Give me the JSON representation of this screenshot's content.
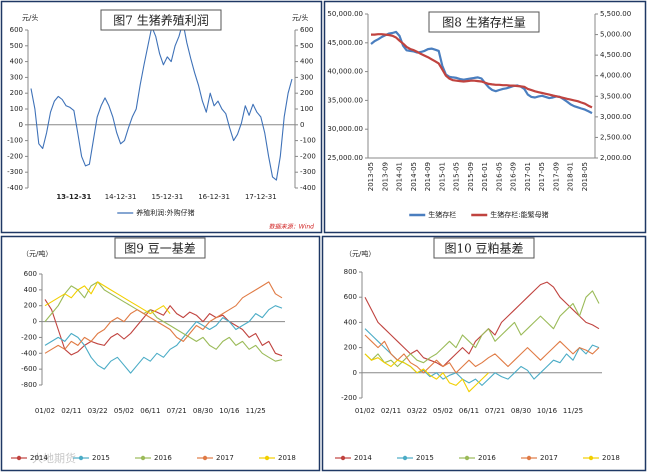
{
  "watermark": "大地期货",
  "chart_data": [
    {
      "type": "line",
      "title": "图7 生猪养殖利润",
      "y_label": "元/头",
      "y2_label": "元/头",
      "source": "数据来源：Wind",
      "legend": "bottom",
      "categories": [
        null,
        null,
        null,
        null,
        null,
        null,
        null,
        null,
        null,
        null,
        null,
        "13-12-31",
        null,
        null,
        null,
        null,
        null,
        null,
        null,
        null,
        null,
        null,
        null,
        "14-12-31",
        null,
        null,
        null,
        null,
        null,
        null,
        null,
        null,
        null,
        null,
        null,
        "15-12-31",
        null,
        null,
        null,
        null,
        null,
        null,
        null,
        null,
        null,
        null,
        null,
        "16-12-31",
        null,
        null,
        null,
        null,
        null,
        null,
        null,
        null,
        null,
        null,
        null,
        "17-12-31",
        null,
        null,
        null,
        null,
        null,
        null,
        null,
        null
      ],
      "ylim": [
        -400,
        600
      ],
      "yticks": [
        -400,
        -300,
        -200,
        -100,
        0,
        100,
        200,
        300,
        400,
        500,
        600
      ],
      "series": [
        {
          "name": "养殖利润:外购仔猪",
          "color": "#3f72b8",
          "values": [
            230,
            100,
            -120,
            -150,
            -50,
            80,
            150,
            180,
            160,
            120,
            110,
            90,
            -50,
            -200,
            -260,
            -250,
            -100,
            50,
            120,
            170,
            120,
            50,
            -50,
            -120,
            -100,
            -20,
            50,
            100,
            250,
            380,
            500,
            620,
            560,
            450,
            380,
            430,
            400,
            500,
            560,
            650,
            520,
            420,
            330,
            250,
            150,
            80,
            200,
            120,
            150,
            100,
            70,
            -20,
            -100,
            -60,
            10,
            120,
            60,
            130,
            80,
            50,
            -50,
            -200,
            -330,
            -350,
            -200,
            50,
            200,
            290
          ]
        }
      ]
    },
    {
      "type": "line",
      "title": "图8 生猪存栏量",
      "legend": "bottom",
      "categories": [
        "2013-05",
        null,
        null,
        null,
        "2013-09",
        null,
        null,
        null,
        "2014-01",
        null,
        null,
        null,
        "2014-05",
        null,
        null,
        null,
        "2014-09",
        null,
        null,
        null,
        "2015-01",
        null,
        null,
        null,
        "2015-05",
        null,
        null,
        null,
        "2015-09",
        null,
        null,
        null,
        "2016-01",
        null,
        null,
        null,
        "2016-05",
        null,
        null,
        null,
        "2016-09",
        null,
        null,
        null,
        "2017-01",
        null,
        null,
        null,
        "2017-05",
        null,
        null,
        null,
        "2017-09",
        null,
        null,
        null,
        "2018-01",
        null,
        null,
        null,
        "2018-05",
        null,
        null
      ],
      "ylim": [
        25000,
        50000
      ],
      "yticks": [
        {
          "value": 25000,
          "label": "25,000.00"
        },
        {
          "value": 30000,
          "label": "30,000.00"
        },
        {
          "value": 35000,
          "label": "35,000.00"
        },
        {
          "value": 40000,
          "label": "40,000.00"
        },
        {
          "value": 45000,
          "label": "45,000.00"
        },
        {
          "value": 50000,
          "label": "50,000.00"
        }
      ],
      "y2lim": [
        2000,
        5500
      ],
      "y2ticks": [
        {
          "value": 2000,
          "label": "2,000.00"
        },
        {
          "value": 2500,
          "label": "2,500.00"
        },
        {
          "value": 3000,
          "label": "3,000.00"
        },
        {
          "value": 3500,
          "label": "3,500.00"
        },
        {
          "value": 4000,
          "label": "4,000.00"
        },
        {
          "value": 4500,
          "label": "4,500.00"
        },
        {
          "value": 5000,
          "label": "5,000.00"
        },
        {
          "value": 5500,
          "label": "5,500.00"
        }
      ],
      "series": [
        {
          "name": "生猪存栏",
          "color": "#4a7ebf",
          "values": [
            44800,
            45300,
            45600,
            46000,
            46300,
            46600,
            46700,
            46900,
            46200,
            44500,
            43700,
            43600,
            43500,
            43300,
            43400,
            43600,
            43900,
            44000,
            43800,
            43600,
            41000,
            39500,
            39100,
            39000,
            38900,
            38700,
            38600,
            38700,
            38800,
            38900,
            39000,
            38800,
            38000,
            37300,
            36800,
            36600,
            36800,
            37000,
            37100,
            37300,
            37500,
            37600,
            37400,
            37000,
            36000,
            35600,
            35500,
            35700,
            35800,
            35600,
            35400,
            35500,
            35700,
            35600,
            35200,
            34800,
            34300,
            34000,
            33800,
            33600,
            33400,
            33100,
            32800
          ]
        },
        {
          "name": "生猪存栏:能繁母猪",
          "color": "#c0433f",
          "axis": "y2",
          "values": [
            5000,
            5000,
            5010,
            5010,
            5000,
            4990,
            4970,
            4930,
            4850,
            4780,
            4700,
            4650,
            4620,
            4580,
            4530,
            4490,
            4450,
            4400,
            4350,
            4300,
            4150,
            4000,
            3930,
            3890,
            3880,
            3870,
            3860,
            3870,
            3880,
            3880,
            3870,
            3860,
            3830,
            3800,
            3790,
            3780,
            3780,
            3770,
            3770,
            3760,
            3760,
            3750,
            3740,
            3730,
            3680,
            3650,
            3620,
            3600,
            3580,
            3560,
            3540,
            3520,
            3500,
            3480,
            3460,
            3440,
            3420,
            3400,
            3380,
            3350,
            3320,
            3270,
            3230
          ]
        }
      ]
    },
    {
      "type": "line",
      "title": "图9 豆一基差",
      "y_label": "（元/吨）",
      "legend": "bottom",
      "categories": [
        "01/02",
        null,
        null,
        null,
        "02/11",
        null,
        null,
        null,
        "03/22",
        null,
        null,
        null,
        "05/02",
        null,
        null,
        null,
        "06/11",
        null,
        null,
        null,
        "07/21",
        null,
        null,
        null,
        "08/30",
        null,
        null,
        null,
        "10/16",
        null,
        null,
        null,
        "11/25",
        null,
        null,
        null,
        null
      ],
      "ylim": [
        -800,
        600
      ],
      "yticks": [
        -800,
        -600,
        -400,
        -200,
        0,
        200,
        400,
        600
      ],
      "series": [
        {
          "name": "2014",
          "color": "#c0433f",
          "values": [
            280,
            150,
            -100,
            -350,
            -420,
            -380,
            -300,
            -250,
            -280,
            -300,
            -200,
            -150,
            -220,
            -150,
            -50,
            50,
            150,
            120,
            80,
            200,
            100,
            50,
            120,
            80,
            0,
            100,
            50,
            80,
            0,
            -50,
            -100,
            -200,
            -150,
            -300,
            -250,
            -400,
            -430
          ]
        },
        {
          "name": "2015",
          "color": "#4bacc6",
          "values": [
            -300,
            -250,
            -200,
            -250,
            -150,
            -200,
            -300,
            -450,
            -550,
            -600,
            -500,
            -450,
            -550,
            -650,
            -550,
            -450,
            -500,
            -400,
            -450,
            -350,
            -300,
            -200,
            -100,
            0,
            -50,
            -100,
            -50,
            50,
            0,
            -100,
            -50,
            0,
            100,
            50,
            150,
            200,
            170
          ]
        },
        {
          "name": "2016",
          "color": "#9bbb59",
          "values": [
            0,
            100,
            200,
            350,
            450,
            400,
            300,
            450,
            500,
            400,
            350,
            300,
            250,
            200,
            150,
            100,
            150,
            50,
            0,
            -50,
            -100,
            -150,
            -200,
            -250,
            -200,
            -300,
            -350,
            -250,
            -200,
            -300,
            -250,
            -350,
            -300,
            -400,
            -450,
            -500,
            -480
          ]
        },
        {
          "name": "2017",
          "color": "#e07b45",
          "values": [
            -400,
            -350,
            -300,
            -350,
            -250,
            -300,
            -200,
            -250,
            -150,
            -100,
            0,
            50,
            0,
            100,
            150,
            100,
            50,
            0,
            -50,
            -100,
            -200,
            -250,
            -150,
            -50,
            -100,
            0,
            50,
            100,
            150,
            200,
            300,
            350,
            400,
            450,
            500,
            350,
            300
          ]
        },
        {
          "name": "2018",
          "color": "#f2cf00",
          "values": [
            200,
            250,
            300,
            350,
            300,
            400,
            450,
            350,
            500,
            450,
            400,
            350,
            300,
            250,
            200,
            150,
            100,
            150,
            200,
            100,
            null,
            null,
            null,
            null,
            null,
            null,
            null,
            null,
            null,
            null,
            null,
            null,
            null,
            null,
            null,
            null,
            null
          ]
        }
      ]
    },
    {
      "type": "line",
      "title": "图10 豆粕基差",
      "y_label": "（元/吨）",
      "legend": "bottom",
      "categories": [
        "01/02",
        null,
        null,
        null,
        "02/11",
        null,
        null,
        null,
        "03/22",
        null,
        null,
        null,
        "05/02",
        null,
        null,
        null,
        "06/11",
        null,
        null,
        null,
        "07/21",
        null,
        null,
        null,
        "08/30",
        null,
        null,
        null,
        "10/16",
        null,
        null,
        null,
        "11/25",
        null,
        null,
        null,
        null
      ],
      "ylim": [
        -200,
        800
      ],
      "yticks": [
        -200,
        0,
        200,
        400,
        600,
        800
      ],
      "series": [
        {
          "name": "2014",
          "color": "#c0433f",
          "values": [
            600,
            500,
            400,
            350,
            300,
            250,
            200,
            150,
            180,
            120,
            100,
            80,
            50,
            100,
            150,
            200,
            150,
            250,
            300,
            350,
            300,
            400,
            450,
            500,
            550,
            600,
            650,
            700,
            720,
            680,
            600,
            550,
            500,
            450,
            400,
            380,
            350
          ]
        },
        {
          "name": "2015",
          "color": "#4bacc6",
          "values": [
            350,
            300,
            250,
            200,
            150,
            100,
            80,
            50,
            0,
            20,
            -30,
            0,
            -50,
            -20,
            0,
            -50,
            -80,
            -50,
            -100,
            -50,
            0,
            -30,
            -50,
            0,
            50,
            20,
            -50,
            0,
            50,
            100,
            80,
            150,
            100,
            200,
            150,
            220,
            200
          ]
        },
        {
          "name": "2016",
          "color": "#9bbb59",
          "values": [
            150,
            100,
            150,
            80,
            100,
            50,
            100,
            150,
            100,
            80,
            120,
            150,
            200,
            250,
            200,
            300,
            250,
            200,
            300,
            350,
            250,
            300,
            350,
            400,
            300,
            350,
            400,
            450,
            400,
            350,
            450,
            500,
            550,
            450,
            600,
            650,
            550
          ]
        },
        {
          "name": "2017",
          "color": "#e07b45",
          "values": [
            300,
            250,
            200,
            250,
            150,
            100,
            150,
            80,
            50,
            0,
            50,
            100,
            50,
            80,
            0,
            50,
            100,
            50,
            80,
            120,
            150,
            100,
            50,
            100,
            150,
            200,
            150,
            100,
            150,
            200,
            250,
            200,
            150,
            200,
            180,
            150,
            200
          ]
        },
        {
          "name": "2018",
          "color": "#f2cf00",
          "values": [
            150,
            100,
            120,
            80,
            50,
            100,
            80,
            50,
            0,
            30,
            -20,
            -50,
            0,
            -80,
            -100,
            -50,
            -150,
            -100,
            -50,
            0,
            null,
            null,
            null,
            null,
            null,
            null,
            null,
            null,
            null,
            null,
            null,
            null,
            null,
            null,
            null,
            null,
            null
          ]
        }
      ]
    }
  ]
}
